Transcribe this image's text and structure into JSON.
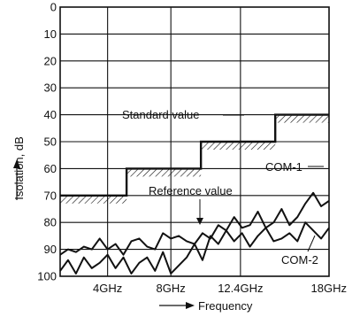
{
  "chart_data": {
    "type": "line",
    "title": "",
    "xlabel": "Frequency",
    "ylabel": "Isolation, dB",
    "xlim": [
      1,
      18
    ],
    "ylim": [
      100,
      0
    ],
    "y_inverted": true,
    "grid": true,
    "x_ticks": [
      {
        "value": 4,
        "label": "4GHz"
      },
      {
        "value": 8,
        "label": "8GHz"
      },
      {
        "value": 12.4,
        "label": "12.4GHz"
      },
      {
        "value": 18,
        "label": "18GHz"
      }
    ],
    "y_ticks": [
      0,
      10,
      20,
      30,
      40,
      50,
      60,
      70,
      80,
      90,
      100
    ],
    "series": [
      {
        "name": "Standard value",
        "style": "step-hatched",
        "x": [
          1,
          5.2,
          5.2,
          9.9,
          9.9,
          14.6,
          14.6,
          18
        ],
        "values": [
          70,
          70,
          60,
          60,
          50,
          50,
          40,
          40
        ]
      },
      {
        "name": "COM-1",
        "style": "line",
        "x": [
          1,
          1.5,
          2,
          2.5,
          3,
          3.5,
          4,
          4.5,
          5,
          5.5,
          6,
          6.5,
          7,
          7.5,
          8,
          8.5,
          9,
          9.5,
          10,
          10.5,
          11,
          11.5,
          12,
          12.5,
          13,
          13.5,
          14,
          14.5,
          15,
          15.5,
          16,
          16.5,
          17,
          17.5,
          18
        ],
        "values": [
          92,
          90,
          91,
          89,
          90,
          86,
          90,
          88,
          92,
          87,
          86,
          89,
          90,
          84,
          86,
          85,
          87,
          88,
          84,
          86,
          81,
          83,
          78,
          82,
          81,
          76,
          82,
          80,
          75,
          81,
          78,
          73,
          69,
          74,
          72
        ]
      },
      {
        "name": "COM-2",
        "style": "line",
        "x": [
          1,
          1.5,
          2,
          2.5,
          3,
          3.5,
          4,
          4.5,
          5,
          5.5,
          6,
          6.5,
          7,
          7.5,
          8,
          8.5,
          9,
          9.5,
          10,
          10.5,
          11,
          11.5,
          12,
          12.5,
          13,
          13.5,
          14,
          14.5,
          15,
          15.5,
          16,
          16.5,
          17,
          17.5,
          18
        ],
        "values": [
          98,
          94,
          99,
          93,
          97,
          95,
          92,
          97,
          93,
          99,
          95,
          93,
          98,
          91,
          99,
          96,
          93,
          88,
          94,
          85,
          88,
          83,
          87,
          84,
          89,
          85,
          82,
          87,
          86,
          84,
          87,
          80,
          83,
          86,
          82
        ]
      }
    ],
    "annotations": {
      "standard": "Standard value",
      "reference": "Reference value",
      "com1": "COM-1",
      "com2": "COM-2"
    }
  }
}
